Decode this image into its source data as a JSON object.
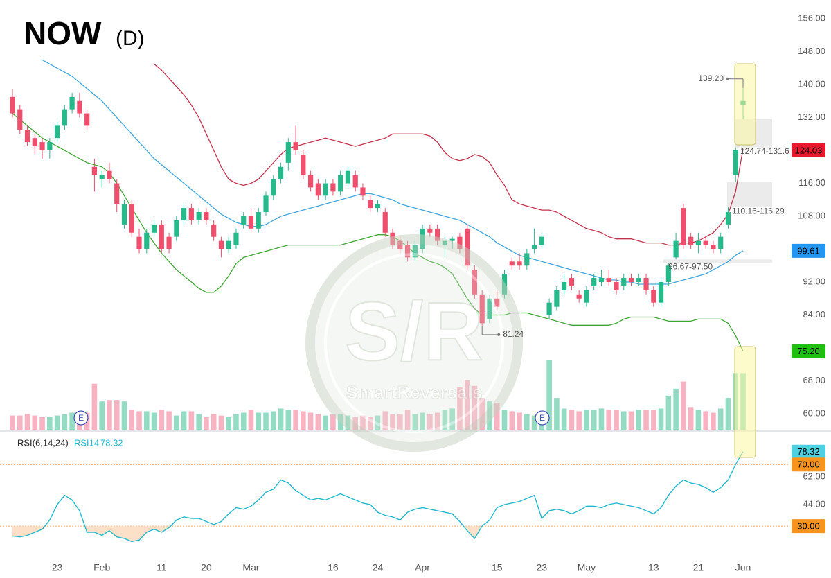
{
  "chart_data": {
    "type": "candlestick",
    "title": "NOW",
    "subtitle": "(D)",
    "categories": [
      null,
      null,
      null,
      null,
      null,
      null,
      "23",
      null,
      null,
      null,
      null,
      null,
      "Feb",
      null,
      null,
      null,
      null,
      null,
      null,
      null,
      "11",
      null,
      null,
      null,
      null,
      null,
      "20",
      null,
      null,
      null,
      null,
      null,
      "Mar",
      null,
      null,
      null,
      null,
      null,
      null,
      null,
      null,
      null,
      null,
      "16",
      null,
      null,
      null,
      null,
      null,
      "24",
      null,
      null,
      null,
      null,
      null,
      "Apr",
      null,
      null,
      null,
      null,
      null,
      null,
      null,
      null,
      null,
      "15",
      null,
      null,
      null,
      null,
      null,
      "23",
      null,
      null,
      null,
      null,
      null,
      "May",
      null,
      null,
      null,
      null,
      null,
      null,
      null,
      null,
      "13",
      null,
      null,
      null,
      null,
      null,
      "21",
      null,
      null,
      null,
      null,
      null,
      "Jun"
    ],
    "open": [
      137,
      134,
      129,
      127,
      126,
      124,
      127,
      130,
      134,
      136,
      133,
      120,
      117,
      119,
      116,
      106,
      111,
      103,
      100,
      104,
      106,
      103,
      103,
      107,
      110,
      107,
      109,
      106,
      102,
      100,
      101,
      106,
      108,
      105,
      109,
      113,
      117,
      121,
      126,
      123,
      118,
      116,
      113,
      116,
      114,
      116,
      118,
      115,
      112,
      110,
      109,
      104,
      102,
      101,
      98,
      100,
      105,
      105,
      101,
      102,
      103,
      105,
      95,
      89,
      83,
      88,
      89,
      97,
      97,
      96,
      100,
      101,
      84,
      86,
      90,
      93,
      89,
      87,
      91,
      92,
      93,
      92,
      91,
      93,
      92,
      93,
      90,
      87,
      92,
      98,
      110,
      103,
      101,
      102,
      101,
      100,
      106,
      118,
      135
    ],
    "high": [
      139,
      135,
      130,
      128,
      127,
      127,
      131,
      135,
      138,
      138,
      134,
      122,
      119,
      121,
      117,
      112,
      112,
      105,
      105,
      107,
      107,
      104,
      108,
      111,
      111,
      110,
      110,
      107,
      103,
      103,
      105,
      109,
      110,
      110,
      114,
      118,
      121,
      127,
      130,
      124,
      119,
      117,
      117,
      117,
      119,
      120,
      119,
      116,
      113,
      112,
      110,
      105,
      103,
      102,
      102,
      106,
      106,
      106,
      103,
      103,
      104,
      106,
      96,
      90,
      89,
      90,
      95,
      98,
      99,
      100,
      105,
      104,
      88,
      91,
      94,
      94,
      90,
      91,
      94,
      95,
      95,
      93,
      94,
      94,
      94,
      94,
      91,
      93,
      96.67,
      104,
      111,
      104,
      104,
      103,
      102,
      104,
      110.16,
      124.74,
      139.2
    ],
    "low": [
      132,
      128,
      125,
      123,
      122,
      122,
      126,
      129,
      133,
      132,
      129,
      114,
      115,
      116,
      109,
      105,
      103,
      99,
      99,
      103,
      99,
      99,
      102,
      106,
      106,
      106,
      106,
      102,
      98,
      99,
      100,
      105,
      104,
      104,
      108,
      112,
      116,
      119,
      123,
      117,
      114,
      112,
      112,
      113,
      113,
      115,
      114,
      112,
      109,
      109,
      103,
      100,
      99,
      97,
      97,
      99,
      103,
      101,
      98,
      100,
      99,
      95,
      88,
      81.24,
      82,
      85,
      88,
      95,
      95,
      95,
      99,
      100,
      83,
      85,
      89,
      90,
      87,
      86,
      90,
      91,
      91,
      89,
      90,
      91,
      91,
      89,
      86,
      86,
      91,
      97.5,
      100,
      100,
      99,
      100,
      99,
      99,
      105,
      116.29,
      131.6
    ],
    "close": [
      133,
      129,
      126,
      125,
      124,
      126,
      130,
      134,
      137,
      133,
      130,
      118,
      118,
      117,
      111,
      111,
      104,
      100,
      104,
      106,
      100,
      100,
      107,
      110,
      107,
      109,
      107,
      103,
      100,
      102,
      104,
      108,
      105,
      109,
      113,
      117,
      120,
      126,
      124,
      118,
      115,
      113,
      116,
      114,
      118,
      119,
      115,
      113,
      110,
      111,
      104,
      101,
      100,
      98,
      101,
      105,
      104,
      102,
      102,
      102.5,
      100,
      96,
      89,
      82,
      88,
      86,
      94,
      96,
      96,
      99,
      101,
      103,
      87,
      90,
      92,
      91,
      88,
      90,
      93,
      93,
      92,
      90,
      93,
      92,
      93,
      90,
      87,
      92,
      96,
      102,
      101,
      101,
      102,
      101,
      100,
      103,
      109,
      124.03,
      136
    ],
    "volume": [
      20,
      20,
      22,
      20,
      18,
      18,
      20,
      22,
      24,
      20,
      24,
      65,
      40,
      42,
      42,
      40,
      28,
      26,
      26,
      24,
      28,
      26,
      20,
      26,
      26,
      22,
      18,
      22,
      20,
      18,
      22,
      24,
      28,
      24,
      24,
      26,
      30,
      28,
      28,
      26,
      24,
      22,
      20,
      22,
      22,
      20,
      18,
      20,
      18,
      20,
      26,
      22,
      22,
      28,
      22,
      24,
      22,
      24,
      28,
      30,
      60,
      70,
      62,
      45,
      40,
      38,
      28,
      26,
      24,
      22,
      20,
      24,
      98,
      45,
      30,
      28,
      26,
      28,
      28,
      30,
      28,
      28,
      26,
      26,
      28,
      28,
      28,
      30,
      48,
      58,
      68,
      32,
      28,
      26,
      24,
      30,
      45,
      80,
      80
    ],
    "up_color": "#26b98a",
    "down_color": "#ef4e6c",
    "volume_up_color": "#93dcc3",
    "volume_down_color": "#f7b3c2",
    "ylim": [
      60,
      156
    ],
    "yticks": [
      {
        "value": 156,
        "label": "156.00"
      },
      {
        "value": 148,
        "label": "148.00"
      },
      {
        "value": 140,
        "label": "140.00"
      },
      {
        "value": 132,
        "label": "132.00"
      },
      {
        "value": 116,
        "label": "116.00"
      },
      {
        "value": 108,
        "label": "108.00"
      },
      {
        "value": 92,
        "label": "92.00"
      },
      {
        "value": 84,
        "label": "84.00"
      },
      {
        "value": 68,
        "label": "68.00"
      },
      {
        "value": 60,
        "label": "60.00"
      }
    ],
    "grid": false,
    "bollinger": {
      "upper": {
        "color": "#c2334d",
        "values": [
          null,
          null,
          null,
          null,
          null,
          null,
          null,
          null,
          null,
          null,
          null,
          null,
          null,
          null,
          null,
          null,
          null,
          null,
          null,
          145,
          143.5,
          141.5,
          139.5,
          137.5,
          135,
          132,
          128,
          124,
          120,
          117,
          116,
          115.5,
          116,
          117,
          119,
          121,
          123,
          124.5,
          125,
          125.5,
          126,
          126.5,
          127,
          126.5,
          126,
          125.5,
          125,
          125.5,
          126,
          126.5,
          127,
          128,
          128,
          128,
          128,
          128,
          127.5,
          126,
          123.5,
          122,
          121.5,
          122,
          123,
          122.5,
          121,
          118,
          115.5,
          112,
          111,
          110.5,
          110,
          109.5,
          109.5,
          109,
          108,
          107,
          106,
          105,
          104.5,
          104,
          103,
          102.5,
          102.5,
          102.5,
          102,
          101.5,
          101.5,
          101.5,
          101,
          101,
          101.5,
          101.5,
          102,
          103,
          104,
          106,
          108.5,
          114,
          124.4
        ]
      },
      "middle": {
        "color": "#3ea6dc",
        "values": [
          null,
          null,
          null,
          null,
          146,
          145,
          144,
          143,
          142,
          140.5,
          139,
          137.5,
          136,
          134,
          132,
          130,
          128,
          126,
          124,
          122,
          120.5,
          119,
          117.5,
          116,
          114.5,
          113,
          111.5,
          110,
          108.5,
          107.5,
          106.5,
          106,
          105.5,
          105.5,
          106,
          107,
          108,
          108.5,
          109,
          109.5,
          110,
          110.5,
          111,
          111.5,
          112,
          112.5,
          113,
          113.5,
          113.5,
          113,
          112.5,
          112,
          111,
          110.5,
          110,
          109.5,
          109,
          108.5,
          108,
          107.5,
          107,
          106,
          105,
          104,
          103,
          101.5,
          100.5,
          99.5,
          98.5,
          98,
          97.5,
          97,
          96.5,
          96,
          95.5,
          95,
          94.5,
          94,
          93.5,
          93,
          92.5,
          92.5,
          92,
          92,
          91.5,
          91.5,
          91.5,
          91.5,
          91.5,
          92,
          92.5,
          93,
          93.5,
          94,
          95,
          96,
          97,
          98.5,
          99.61
        ]
      },
      "lower": {
        "color": "#3fa535",
        "values": [
          133,
          131.5,
          130,
          128.5,
          127,
          126,
          125,
          124,
          123,
          122,
          121,
          120.5,
          120,
          118.5,
          116,
          113,
          110,
          107,
          104,
          101.5,
          99,
          97,
          95,
          93.5,
          92,
          90.5,
          89.5,
          89.5,
          91,
          93.5,
          96.5,
          98,
          98.5,
          99,
          99.5,
          100,
          100.5,
          101,
          101,
          101,
          101,
          101,
          101,
          101,
          101,
          101.5,
          102,
          102.5,
          103,
          103.5,
          103.5,
          103,
          102,
          100.5,
          99,
          98,
          97,
          96.5,
          95.5,
          94,
          91,
          88,
          85.5,
          84,
          84,
          84,
          84,
          84.5,
          84.5,
          84.5,
          84,
          83.5,
          83,
          82.5,
          82,
          81.5,
          81.5,
          81.5,
          81.5,
          81.5,
          81.5,
          82,
          83,
          83.5,
          83.5,
          83.5,
          83.5,
          83,
          82.5,
          82.5,
          82.5,
          82.5,
          83,
          83,
          83,
          83,
          82,
          79,
          75.2
        ]
      }
    },
    "price_tags": [
      {
        "value": 124.03,
        "label": "124.03",
        "color": "#e8192c",
        "text_color": "#ffffff"
      },
      {
        "value": 99.61,
        "label": "99.61",
        "color": "#2196f3",
        "text_color": "#ffffff"
      },
      {
        "value": 75.2,
        "label": "75.20",
        "color": "#1fbf0f",
        "text_color": "#000000"
      }
    ],
    "gaps": [
      {
        "low": 124.74,
        "high": 131.6,
        "label": "124.74-131.6"
      },
      {
        "low": 110.16,
        "high": 116.29,
        "label": "110.16-116.29"
      },
      {
        "low": 96.67,
        "high": 97.5,
        "label": "96.67-97.50"
      }
    ],
    "high_label": {
      "value": 139.2,
      "label": "139.20"
    },
    "low_label": {
      "value": 81.24,
      "label": "81.24"
    },
    "earnings": [
      "E",
      "E"
    ],
    "rsi": {
      "legend": "RSI(6,14,24)",
      "name": "RSI14",
      "color": "#22b8cc",
      "values": [
        23.6,
        23,
        24,
        26,
        28,
        34,
        44,
        50,
        47,
        40,
        26,
        26,
        24,
        27,
        23,
        22,
        20,
        21,
        26,
        28,
        26,
        29,
        34,
        36,
        35,
        35,
        33,
        31,
        33,
        38,
        42,
        41,
        43,
        47,
        52,
        54,
        60,
        58,
        53,
        50,
        47,
        48,
        47,
        49,
        51,
        49,
        47,
        45,
        44,
        39,
        37,
        36,
        34,
        39,
        41,
        42,
        41,
        40,
        39,
        38,
        33,
        27,
        22,
        30,
        34,
        42,
        44,
        45,
        46,
        48,
        50,
        35,
        40,
        41,
        40,
        38,
        40,
        43,
        43,
        42,
        44,
        45,
        44,
        43,
        42,
        40,
        38,
        42,
        50,
        56,
        60,
        58,
        57,
        55,
        52,
        55,
        60,
        70,
        78.32
      ],
      "ylim": [
        10,
        90
      ],
      "yticks": [
        {
          "value": 62,
          "label": "62.00"
        },
        {
          "value": 44,
          "label": "44.00"
        }
      ],
      "tags": [
        {
          "value": 78.32,
          "label": "78.32",
          "color": "#4dd0e1"
        },
        {
          "value": 70,
          "label": "70.00",
          "color": "#f7941d"
        },
        {
          "value": 30,
          "label": "30.00",
          "color": "#f7941d"
        }
      ],
      "levels": [
        70,
        30
      ],
      "level_color": "#f0a35e",
      "oversold_fill": "#fde0c8"
    },
    "watermark": {
      "logo": "S/R",
      "brand": "SmartReversals"
    }
  }
}
